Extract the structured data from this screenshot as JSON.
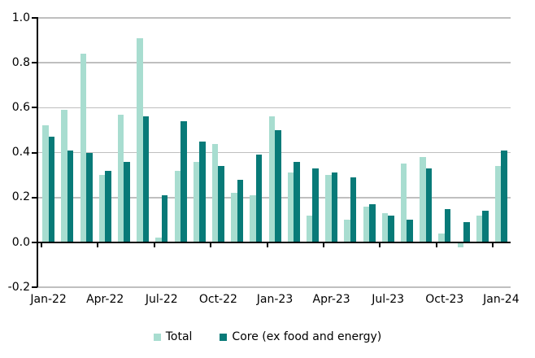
{
  "chart_data": {
    "type": "bar",
    "title": "",
    "xlabel": "",
    "ylabel": "",
    "categories": [
      "Jan-22",
      "Feb-22",
      "Mar-22",
      "Apr-22",
      "May-22",
      "Jun-22",
      "Jul-22",
      "Aug-22",
      "Sep-22",
      "Oct-22",
      "Nov-22",
      "Dec-22",
      "Jan-23",
      "Feb-23",
      "Mar-23",
      "Apr-23",
      "May-23",
      "Jun-23",
      "Jul-23",
      "Aug-23",
      "Sep-23",
      "Oct-23",
      "Nov-23",
      "Dec-23",
      "Jan-24"
    ],
    "series": [
      {
        "name": "Total",
        "color": "#a8ddd0",
        "values": [
          0.52,
          0.59,
          0.84,
          0.3,
          0.57,
          0.91,
          0.02,
          0.32,
          0.36,
          0.44,
          0.22,
          0.21,
          0.56,
          0.31,
          0.12,
          0.3,
          0.1,
          0.16,
          0.13,
          0.35,
          0.38,
          0.04,
          -0.02,
          0.12,
          0.34
        ]
      },
      {
        "name": "Core (ex food and energy)",
        "color": "#087a78",
        "values": [
          0.47,
          0.41,
          0.4,
          0.32,
          0.36,
          0.56,
          0.21,
          0.54,
          0.45,
          0.34,
          0.28,
          0.39,
          0.5,
          0.36,
          0.33,
          0.31,
          0.29,
          0.17,
          0.12,
          0.1,
          0.33,
          0.15,
          0.09,
          0.14,
          0.41
        ]
      }
    ],
    "x_tick_labels": [
      "Jan-22",
      "Apr-22",
      "Jul-22",
      "Oct-22",
      "Jan-23",
      "Apr-23",
      "Jul-23",
      "Oct-23",
      "Jan-24"
    ],
    "y_ticks": [
      1.0,
      0.8,
      0.6,
      0.4,
      0.2,
      0.0,
      -0.2
    ],
    "ylim": [
      -0.2,
      1.0
    ],
    "grid": true,
    "gridline_color": "#bfbfbf",
    "legend_position": "bottom"
  }
}
